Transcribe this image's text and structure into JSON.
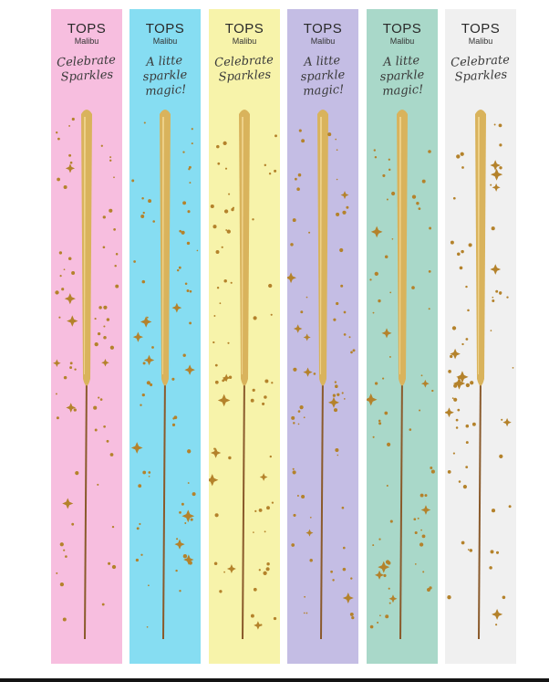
{
  "colors": {
    "stick_gold": "#d9b35c",
    "stick_highlight": "#f3d895",
    "wire_brown": "#8a5a2b",
    "star_gold": "#b4822b"
  },
  "cards": [
    {
      "brand": "TOPS",
      "sub": "Malibu",
      "slogan_line1": "Celebrate",
      "slogan_line2": "Sparkles",
      "slogan_line3": "",
      "bg": "#f7bedf"
    },
    {
      "brand": "TOPS",
      "sub": "Malibu",
      "slogan_line1": "A litte",
      "slogan_line2": "sparkle",
      "slogan_line3": "magic!",
      "bg": "#86ddf2"
    },
    {
      "brand": "TOPS",
      "sub": "Malibu",
      "slogan_line1": "Celebrate",
      "slogan_line2": "Sparkles",
      "slogan_line3": "",
      "bg": "#f7f3aa"
    },
    {
      "brand": "TOPS",
      "sub": "Malibu",
      "slogan_line1": "A litte",
      "slogan_line2": "sparkle",
      "slogan_line3": "magic!",
      "bg": "#c4bde4"
    },
    {
      "brand": "TOPS",
      "sub": "Malibu",
      "slogan_line1": "A litte",
      "slogan_line2": "sparkle",
      "slogan_line3": "magic!",
      "bg": "#a9d8c9"
    },
    {
      "brand": "TOPS",
      "sub": "Malibu",
      "slogan_line1": "Celebrate",
      "slogan_line2": "Sparkles",
      "slogan_line3": "",
      "bg": "#f0f0f0"
    }
  ]
}
